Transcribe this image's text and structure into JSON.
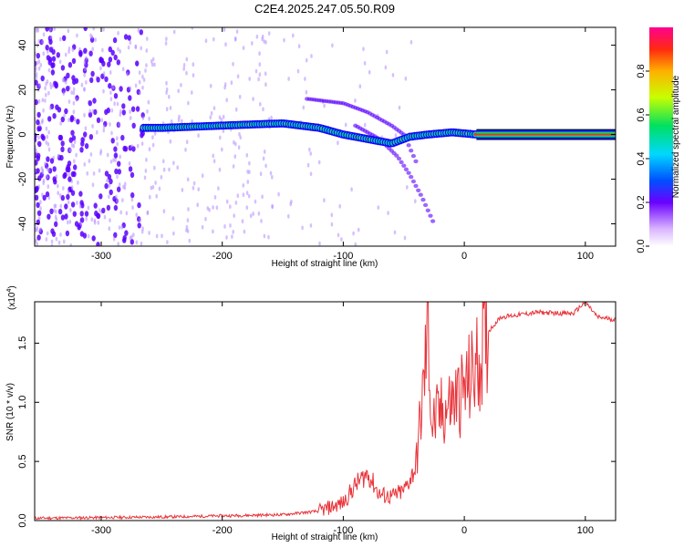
{
  "title": "C2E4.2025.247.05.50.R09",
  "colors": {
    "signal": "#e8343a",
    "ridge_low": "#5a00ff",
    "ridge_mid": "#00d0a0",
    "ridge_high": "#ff2a20"
  },
  "colorbar": {
    "label": "Normalized spectral amplitude",
    "ticks": [
      "0.0",
      "0.2",
      "0.4",
      "0.6",
      "0.8"
    ],
    "tick_values": [
      0.0,
      0.2,
      0.4,
      0.6,
      0.8
    ]
  },
  "chart_data": [
    {
      "type": "heatmap",
      "name": "spectrogram",
      "xlabel": "Height of straight line (km)",
      "ylabel": "Frequency (Hz)",
      "xlim": [
        -355,
        125
      ],
      "ylim": [
        -50,
        48
      ],
      "xticks": [
        -300,
        -200,
        -100,
        0,
        100
      ],
      "yticks": [
        -40,
        -20,
        0,
        20,
        40
      ],
      "carrier": {
        "x_start": -265,
        "x_end": 125,
        "freq_ridge": [
          [
            -280,
            3
          ],
          [
            -250,
            3
          ],
          [
            -200,
            4
          ],
          [
            -150,
            5
          ],
          [
            -120,
            3
          ],
          [
            -100,
            0
          ],
          [
            -80,
            -2
          ],
          [
            -60,
            -4
          ],
          [
            -45,
            -1
          ],
          [
            -30,
            0
          ],
          [
            -10,
            1
          ],
          [
            10,
            0
          ],
          [
            125,
            0
          ]
        ]
      },
      "side_branches": [
        [
          [
            -130,
            16
          ],
          [
            -100,
            14
          ],
          [
            -80,
            10
          ],
          [
            -60,
            4
          ],
          [
            -50,
            0
          ],
          [
            -45,
            -6
          ],
          [
            -40,
            -12
          ]
        ],
        [
          [
            -90,
            4
          ],
          [
            -70,
            -2
          ],
          [
            -55,
            -10
          ],
          [
            -45,
            -18
          ],
          [
            -35,
            -28
          ],
          [
            -25,
            -40
          ]
        ]
      ],
      "noise_region": [
        -355,
        -160
      ]
    },
    {
      "type": "line",
      "name": "snr",
      "xlabel": "Height of straight line (km)",
      "ylabel": "SNR (10 * v/v)",
      "scale_label": "(x10",
      "scale_exp": "4",
      "scale_close": ")",
      "xlim": [
        -355,
        125
      ],
      "ylim": [
        0,
        1.85
      ],
      "xticks": [
        -300,
        -200,
        -100,
        0,
        100
      ],
      "yticks": [
        "0.0",
        "0.5",
        "1.0",
        "1.5"
      ],
      "ytick_values": [
        0.0,
        0.5,
        1.0,
        1.5
      ],
      "series": [
        {
          "name": "SNR",
          "points": [
            [
              -355,
              0.02
            ],
            [
              -250,
              0.03
            ],
            [
              -200,
              0.04
            ],
            [
              -150,
              0.05
            ],
            [
              -120,
              0.08
            ],
            [
              -100,
              0.15
            ],
            [
              -90,
              0.3
            ],
            [
              -80,
              0.4
            ],
            [
              -70,
              0.22
            ],
            [
              -60,
              0.2
            ],
            [
              -50,
              0.25
            ],
            [
              -40,
              0.45
            ],
            [
              -33,
              1.2
            ],
            [
              -30,
              1.7
            ],
            [
              -27,
              0.8
            ],
            [
              -20,
              0.9
            ],
            [
              -10,
              1.0
            ],
            [
              0,
              1.1
            ],
            [
              10,
              1.3
            ],
            [
              20,
              1.6
            ],
            [
              30,
              1.72
            ],
            [
              60,
              1.76
            ],
            [
              90,
              1.75
            ],
            [
              100,
              1.85
            ],
            [
              110,
              1.72
            ],
            [
              125,
              1.7
            ]
          ]
        }
      ]
    }
  ]
}
